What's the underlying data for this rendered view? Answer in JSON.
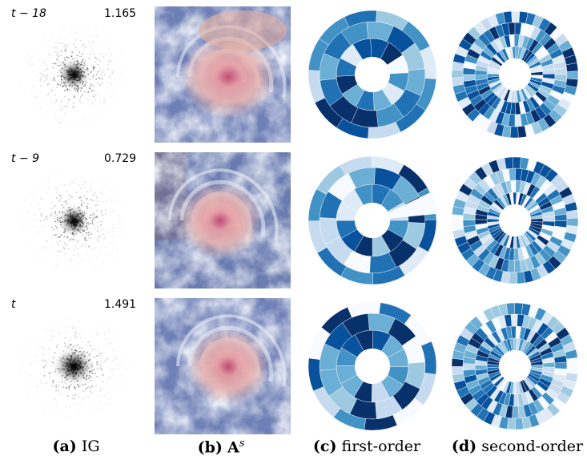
{
  "rows": [
    {
      "time_label": "t − 18",
      "value": "1.165"
    },
    {
      "time_label": "t − 9",
      "value": "0.729"
    },
    {
      "time_label": "t",
      "value": "1.491"
    }
  ],
  "captions": [
    {
      "tag": "(a)",
      "text": "IG"
    },
    {
      "tag": "(b)",
      "text": "A",
      "sup": "s"
    },
    {
      "tag": "(c)",
      "text": "first-order"
    },
    {
      "tag": "(d)",
      "text": "second-order"
    }
  ],
  "colors": {
    "blue_dark": "#08306b",
    "blue_mid": "#4292c6",
    "blue_light": "#c6dbef",
    "white": "#f7fbff",
    "cyclone_pink": "#e8a0a0",
    "cloud_blue": "#6a7fc0"
  }
}
